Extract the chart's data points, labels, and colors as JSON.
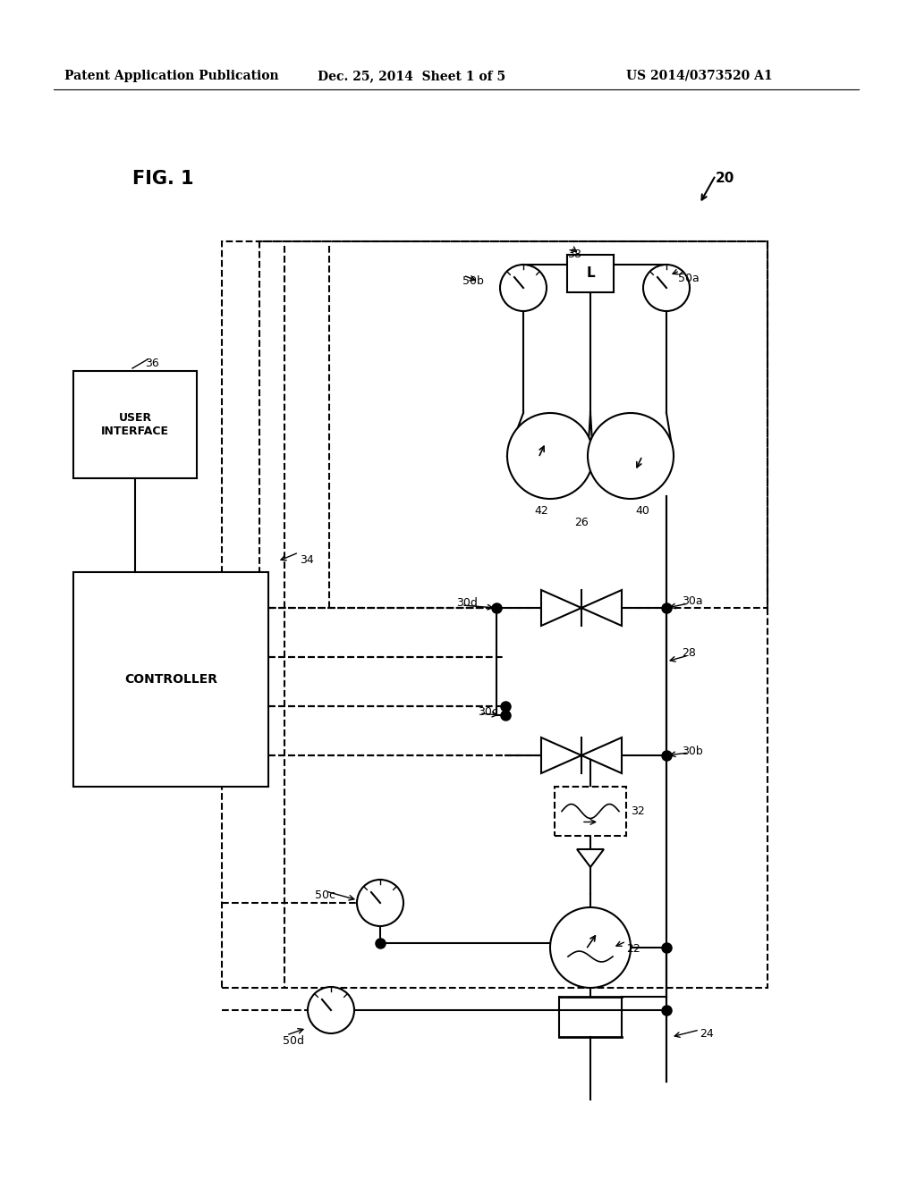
{
  "bg_color": "#ffffff",
  "line_color": "#000000",
  "header_text": "Patent Application Publication",
  "header_date": "Dec. 25, 2014  Sheet 1 of 5",
  "header_patent": "US 2014/0373520 A1",
  "fig_label": "FIG. 1",
  "system_label": "20",
  "label_user_interface": "USER\nINTERFACE",
  "label_controller": "CONTROLLER",
  "label_36": "36",
  "label_34": "34",
  "label_38": "38",
  "label_26": "26",
  "label_28": "28",
  "label_40": "40",
  "label_42": "42",
  "label_30a": "30a",
  "label_30b": "30b",
  "label_30c": "30c",
  "label_30d": "30d",
  "label_32": "32",
  "label_22": "22",
  "label_24": "24",
  "label_50a": "50a",
  "label_50b": "50b",
  "label_50c": "50c",
  "label_50d": "50d",
  "label_L": "L"
}
